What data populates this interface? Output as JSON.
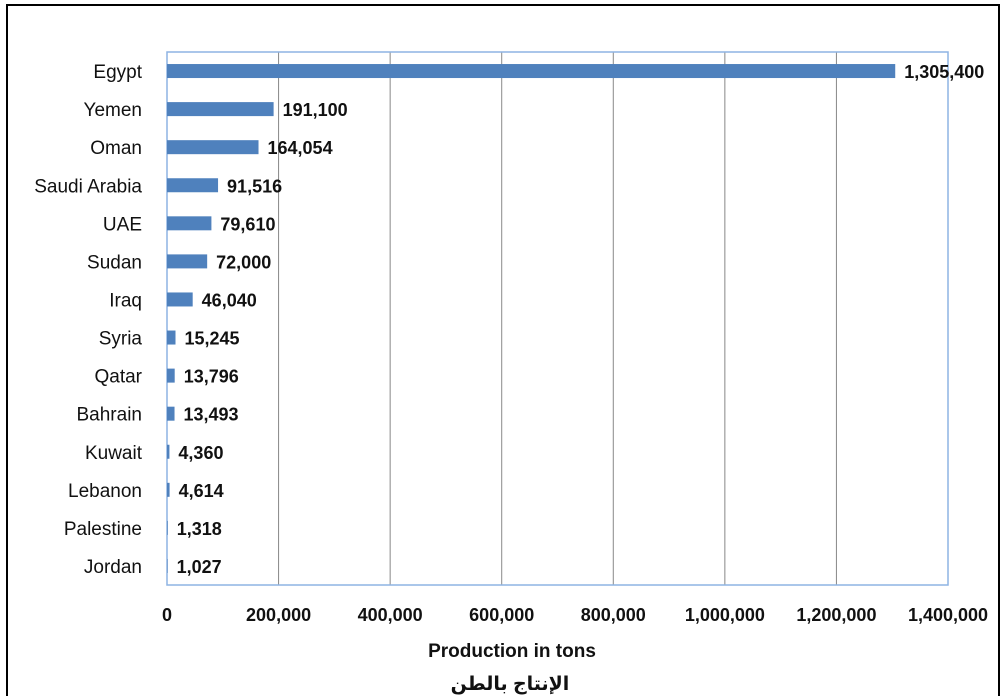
{
  "chart_data": {
    "type": "bar",
    "orientation": "horizontal",
    "categories": [
      "Egypt",
      "Yemen",
      "Oman",
      "Saudi Arabia",
      "UAE",
      "Sudan",
      "Iraq",
      "Syria",
      "Qatar",
      "Bahrain",
      "Kuwait",
      "Lebanon",
      "Palestine",
      "Jordan"
    ],
    "values": [
      1305400,
      191100,
      164054,
      91516,
      79610,
      72000,
      46040,
      15245,
      13796,
      13493,
      4360,
      4614,
      1318,
      1027
    ],
    "value_labels": [
      "1,305,400",
      "191,100",
      "164,054",
      "91,516",
      "79,610",
      "72,000",
      "46,040",
      "15,245",
      "13,796",
      "13,493",
      "4,360",
      "4,614",
      "1,318",
      "1,027"
    ],
    "xlabel": "Production in tons",
    "xlabel_ar": "الإنتاج بالطن",
    "xlim": [
      0,
      1400000
    ],
    "xticks": [
      0,
      200000,
      400000,
      600000,
      800000,
      1000000,
      1200000,
      1400000
    ],
    "xtick_labels": [
      "0",
      "200,000",
      "400,000",
      "600,000",
      "800,000",
      "1,000,000",
      "1,200,000",
      "1,400,000"
    ],
    "grid": "vertical",
    "bar_color": "#4f81bd",
    "grid_color": "#888888",
    "plot_border_color": "#8eb4e3"
  }
}
